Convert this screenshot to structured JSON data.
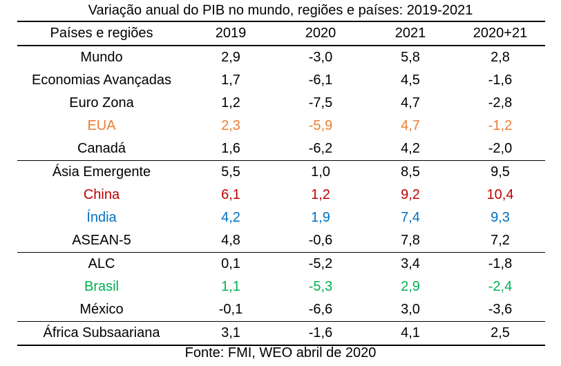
{
  "title": "Variação anual do PIB no mundo, regiões e países: 2019-2021",
  "header": [
    "Países e regiões",
    "2019",
    "2020",
    "2021",
    "2020+21"
  ],
  "rows": [
    {
      "name": "Mundo",
      "values": [
        "2,9",
        "-3,0",
        "5,8",
        "2,8"
      ],
      "color": "#000000",
      "group_start": false
    },
    {
      "name": "Economias Avançadas",
      "values": [
        "1,7",
        "-6,1",
        "4,5",
        "-1,6"
      ],
      "color": "#000000",
      "group_start": false
    },
    {
      "name": "Euro Zona",
      "values": [
        "1,2",
        "-7,5",
        "4,7",
        "-2,8"
      ],
      "color": "#000000",
      "group_start": false
    },
    {
      "name": "EUA",
      "values": [
        "2,3",
        "-5,9",
        "4,7",
        "-1,2"
      ],
      "color": "#ED7D31",
      "group_start": false
    },
    {
      "name": "Canadá",
      "values": [
        "1,6",
        "-6,2",
        "4,2",
        "-2,0"
      ],
      "color": "#000000",
      "group_start": false
    },
    {
      "name": "Ásia Emergente",
      "values": [
        "5,5",
        "1,0",
        "8,5",
        "9,5"
      ],
      "color": "#000000",
      "group_start": true
    },
    {
      "name": "China",
      "values": [
        "6,1",
        "1,2",
        "9,2",
        "10,4"
      ],
      "color": "#C00000",
      "group_start": false
    },
    {
      "name": "Índia",
      "values": [
        "4,2",
        "1,9",
        "7,4",
        "9,3"
      ],
      "color": "#0070C0",
      "group_start": false
    },
    {
      "name": "ASEAN-5",
      "values": [
        "4,8",
        "-0,6",
        "7,8",
        "7,2"
      ],
      "color": "#000000",
      "group_start": false
    },
    {
      "name": "ALC",
      "values": [
        "0,1",
        "-5,2",
        "3,4",
        "-1,8"
      ],
      "color": "#000000",
      "group_start": true
    },
    {
      "name": "Brasil",
      "values": [
        "1,1",
        "-5,3",
        "2,9",
        "-2,4"
      ],
      "color": "#00B050",
      "group_start": false
    },
    {
      "name": "México",
      "values": [
        "-0,1",
        "-6,6",
        "3,0",
        "-3,6"
      ],
      "color": "#000000",
      "group_start": false
    },
    {
      "name": "África Subsaariana",
      "values": [
        "3,1",
        "-1,6",
        "4,1",
        "2,5"
      ],
      "color": "#000000",
      "group_start": true
    }
  ],
  "source": "Fonte: FMI, WEO abril de 2020"
}
